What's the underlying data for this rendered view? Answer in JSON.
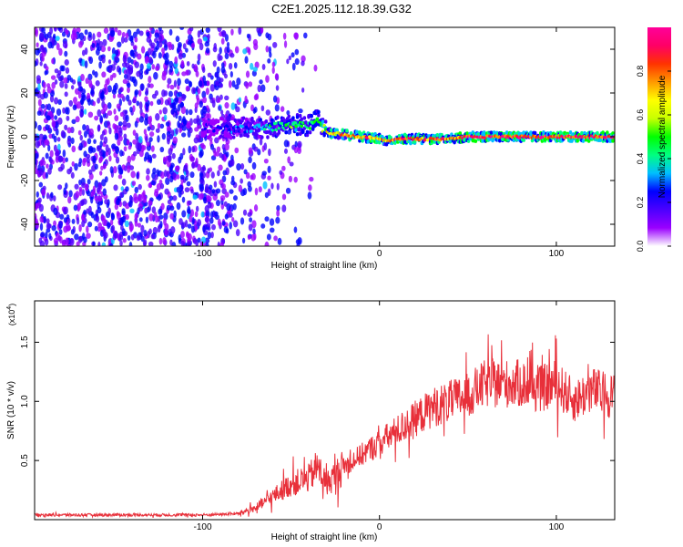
{
  "title": "C2E1.2025.112.18.39.G32",
  "colors": {
    "snr_line": "#e8303a",
    "frame": "#000000",
    "colorbar": [
      "#ffffff",
      "#9a00ff",
      "#4b00ff",
      "#0000ff",
      "#00bfff",
      "#00ff80",
      "#00ff00",
      "#c8ff00",
      "#ffff00",
      "#ff9900",
      "#ff3300",
      "#ff0066",
      "#ff0099"
    ]
  },
  "chart_data": [
    {
      "type": "heatmap",
      "title": "C2E1.2025.112.18.39.G32",
      "xlabel": "Height of straight line (km)",
      "ylabel": "Frequency (Hz)",
      "xlim": [
        -195,
        133
      ],
      "ylim": [
        -50,
        50
      ],
      "xticks": [
        -100,
        0,
        100
      ],
      "xtick_labels": [
        "-100",
        "0",
        "100"
      ],
      "yticks": [
        -40,
        -20,
        0,
        20,
        40
      ],
      "ytick_labels": [
        "-40",
        "-20",
        "0",
        "20",
        "40"
      ],
      "colorbar": {
        "label": "Normalized spectral amplitude",
        "range": [
          0,
          1
        ],
        "ticks": [
          0.0,
          0.2,
          0.4,
          0.6,
          0.8
        ],
        "tick_labels": [
          "0.0",
          "0.2",
          "0.4",
          "0.6",
          "0.8"
        ]
      },
      "ridge": {
        "x": [
          -60,
          -50,
          -40,
          -35,
          -30,
          -20,
          -10,
          0,
          5,
          10,
          20,
          30,
          40,
          50,
          60,
          70,
          80,
          90,
          100,
          110,
          120,
          130
        ],
        "frequency": [
          4,
          6,
          5,
          8,
          2,
          1,
          0,
          -1,
          -2,
          -1,
          -1,
          -1,
          -1,
          0,
          0,
          0,
          0,
          0,
          0,
          0,
          0,
          0
        ],
        "amplitude": [
          0.45,
          0.55,
          0.5,
          0.55,
          0.7,
          0.8,
          0.85,
          0.85,
          0.8,
          0.9,
          0.9,
          0.9,
          0.85,
          0.95,
          0.95,
          0.95,
          0.95,
          0.95,
          0.95,
          0.95,
          0.95,
          0.95
        ]
      }
    },
    {
      "type": "line",
      "xlabel": "Height of straight line (km)",
      "ylabel": "SNR (10 * v/v)",
      "y_multiplier_label": "(x10",
      "y_multiplier_exp": "4",
      "y_multiplier_close": ")",
      "xlim": [
        -195,
        133
      ],
      "ylim": [
        0,
        1.85
      ],
      "xticks": [
        -100,
        0,
        100
      ],
      "xtick_labels": [
        "-100",
        "0",
        "100"
      ],
      "yticks": [
        0.5,
        1.0,
        1.5
      ],
      "ytick_labels": [
        "0.5",
        "1.0",
        "1.5"
      ],
      "series": [
        {
          "x": [
            -195,
            -150,
            -100,
            -80,
            -70,
            -60,
            -50,
            -40,
            -35,
            -30,
            -20,
            -10,
            0,
            10,
            20,
            30,
            40,
            50,
            60,
            70,
            80,
            90,
            100,
            110,
            120,
            130
          ],
          "y": [
            0.04,
            0.04,
            0.04,
            0.05,
            0.1,
            0.2,
            0.3,
            0.35,
            0.45,
            0.3,
            0.45,
            0.55,
            0.65,
            0.75,
            0.85,
            0.95,
            1.0,
            1.05,
            1.15,
            1.15,
            1.15,
            1.1,
            1.15,
            1.0,
            1.1,
            1.05
          ]
        }
      ]
    }
  ]
}
